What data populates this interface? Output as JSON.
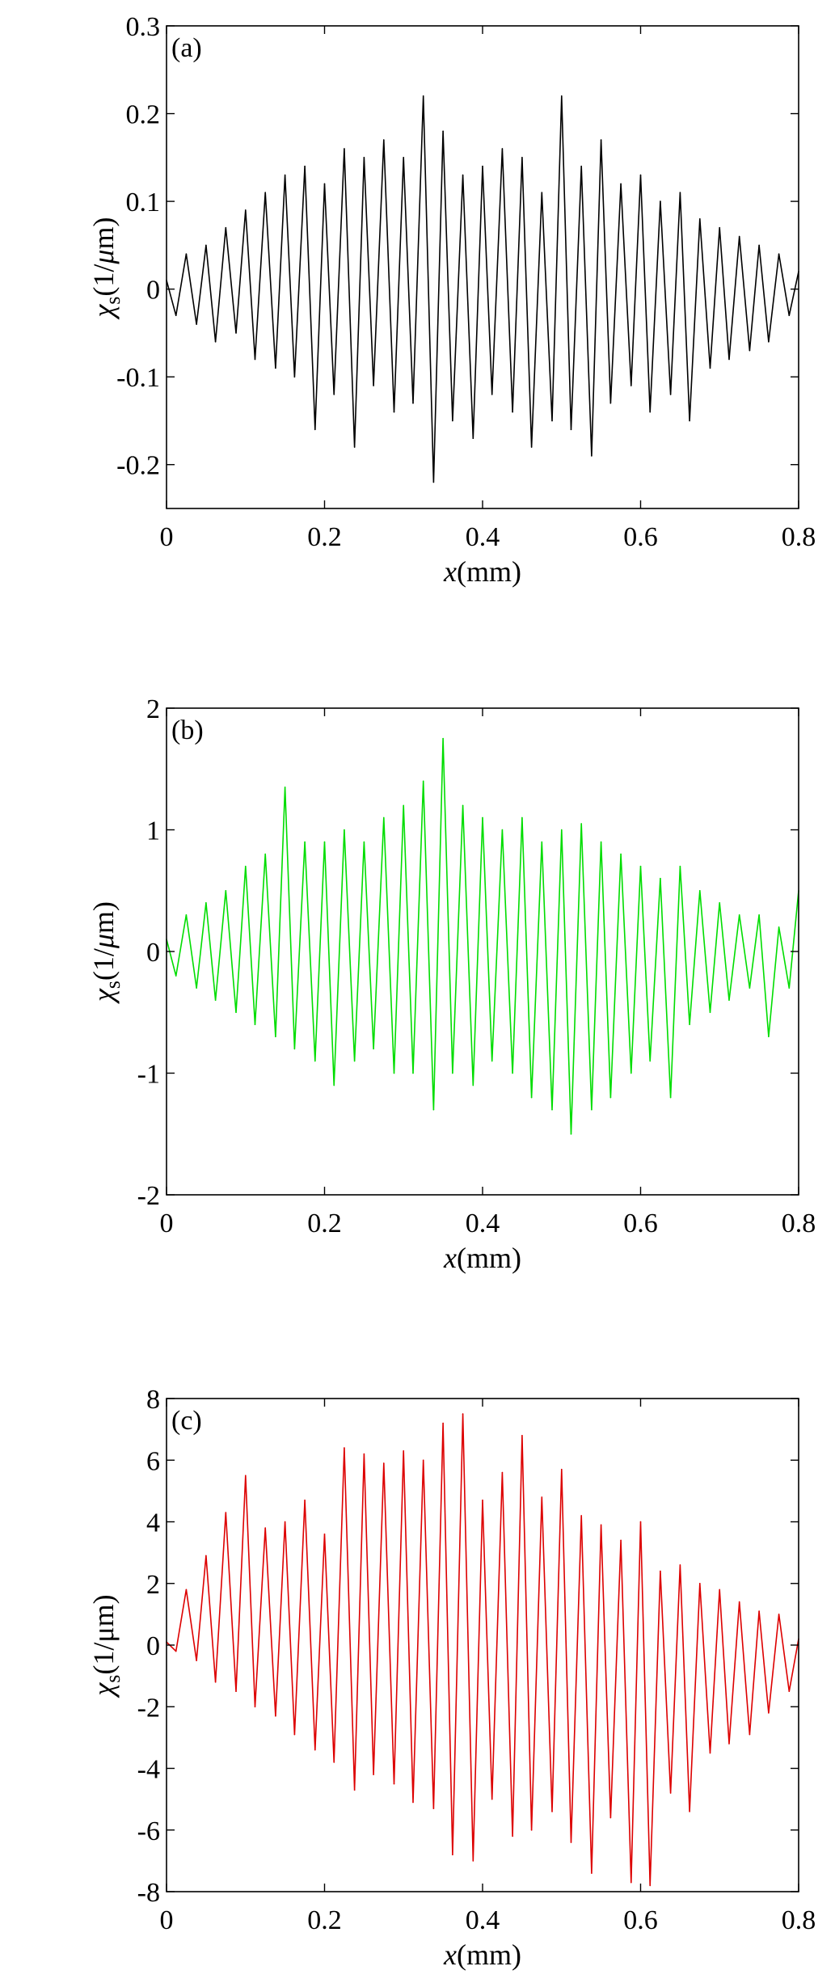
{
  "chart_data": [
    {
      "type": "line",
      "panel_label": "(a)",
      "xlabel_main": "x",
      "xlabel_unit": "(mm)",
      "ylabel_symbol": "χ",
      "ylabel_sub": "s",
      "ylabel_unit_pre": "(1/",
      "ylabel_unit_mu": "μ",
      "ylabel_unit_post": "m)",
      "xlim": [
        0,
        0.8
      ],
      "ylim": [
        -0.25,
        0.3
      ],
      "xticks": [
        0,
        0.2,
        0.4,
        0.6,
        0.8
      ],
      "xtick_labels": [
        "0",
        "0.2",
        "0.4",
        "0.6",
        "0.8"
      ],
      "yticks": [
        -0.2,
        -0.1,
        0,
        0.1,
        0.2,
        0.3
      ],
      "ytick_labels": [
        "-0.2",
        "-0.1",
        "0",
        "0.1",
        "0.2",
        "0.3"
      ],
      "grid": false,
      "series": [
        {
          "color": "#000000",
          "x": [
            0,
            0.012,
            0.025,
            0.038,
            0.05,
            0.062,
            0.075,
            0.088,
            0.1,
            0.112,
            0.125,
            0.138,
            0.15,
            0.162,
            0.175,
            0.188,
            0.2,
            0.212,
            0.225,
            0.238,
            0.25,
            0.262,
            0.275,
            0.288,
            0.3,
            0.312,
            0.325,
            0.338,
            0.35,
            0.362,
            0.375,
            0.388,
            0.4,
            0.412,
            0.425,
            0.438,
            0.45,
            0.462,
            0.475,
            0.488,
            0.5,
            0.512,
            0.525,
            0.538,
            0.55,
            0.562,
            0.575,
            0.588,
            0.6,
            0.612,
            0.625,
            0.638,
            0.65,
            0.662,
            0.675,
            0.688,
            0.7,
            0.712,
            0.725,
            0.738,
            0.75,
            0.762,
            0.775,
            0.788,
            0.8
          ],
          "y": [
            0.01,
            -0.03,
            0.04,
            -0.04,
            0.05,
            -0.06,
            0.07,
            -0.05,
            0.09,
            -0.08,
            0.11,
            -0.09,
            0.13,
            -0.1,
            0.14,
            -0.16,
            0.12,
            -0.12,
            0.16,
            -0.18,
            0.15,
            -0.11,
            0.17,
            -0.14,
            0.15,
            -0.13,
            0.22,
            -0.22,
            0.18,
            -0.15,
            0.13,
            -0.17,
            0.14,
            -0.12,
            0.16,
            -0.14,
            0.15,
            -0.18,
            0.11,
            -0.15,
            0.22,
            -0.16,
            0.14,
            -0.19,
            0.17,
            -0.13,
            0.12,
            -0.11,
            0.13,
            -0.14,
            0.1,
            -0.12,
            0.11,
            -0.15,
            0.08,
            -0.09,
            0.07,
            -0.08,
            0.06,
            -0.07,
            0.05,
            -0.06,
            0.04,
            -0.03,
            0.02
          ]
        }
      ]
    },
    {
      "type": "line",
      "panel_label": "(b)",
      "xlabel_main": "x",
      "xlabel_unit": "(mm)",
      "ylabel_symbol": "χ",
      "ylabel_sub": "s",
      "ylabel_unit_pre": "(1/",
      "ylabel_unit_mu": "μ",
      "ylabel_unit_post": "m)",
      "xlim": [
        0,
        0.8
      ],
      "ylim": [
        -2,
        2
      ],
      "xticks": [
        0,
        0.2,
        0.4,
        0.6,
        0.8
      ],
      "xtick_labels": [
        "0",
        "0.2",
        "0.4",
        "0.6",
        "0.8"
      ],
      "yticks": [
        -2,
        -1,
        0,
        1,
        2
      ],
      "ytick_labels": [
        "-2",
        "-1",
        "0",
        "1",
        "2"
      ],
      "grid": false,
      "series": [
        {
          "color": "#00dd00",
          "x": [
            0,
            0.012,
            0.025,
            0.038,
            0.05,
            0.062,
            0.075,
            0.088,
            0.1,
            0.112,
            0.125,
            0.138,
            0.15,
            0.162,
            0.175,
            0.188,
            0.2,
            0.212,
            0.225,
            0.238,
            0.25,
            0.262,
            0.275,
            0.288,
            0.3,
            0.312,
            0.325,
            0.338,
            0.35,
            0.362,
            0.375,
            0.388,
            0.4,
            0.412,
            0.425,
            0.438,
            0.45,
            0.462,
            0.475,
            0.488,
            0.5,
            0.512,
            0.525,
            0.538,
            0.55,
            0.562,
            0.575,
            0.588,
            0.6,
            0.612,
            0.625,
            0.638,
            0.65,
            0.662,
            0.675,
            0.688,
            0.7,
            0.712,
            0.725,
            0.738,
            0.75,
            0.762,
            0.775,
            0.788,
            0.8
          ],
          "y": [
            0.1,
            -0.2,
            0.3,
            -0.3,
            0.4,
            -0.4,
            0.5,
            -0.5,
            0.7,
            -0.6,
            0.8,
            -0.7,
            1.35,
            -0.8,
            0.9,
            -0.9,
            0.9,
            -1.1,
            1.0,
            -0.9,
            0.9,
            -0.8,
            1.1,
            -1.0,
            1.2,
            -1.0,
            1.4,
            -1.3,
            1.75,
            -1.0,
            1.2,
            -1.1,
            1.1,
            -0.9,
            1.0,
            -1.0,
            1.1,
            -1.2,
            0.9,
            -1.3,
            1.0,
            -1.5,
            1.05,
            -1.3,
            0.9,
            -1.2,
            0.8,
            -1.0,
            0.7,
            -0.9,
            0.6,
            -1.2,
            0.7,
            -0.6,
            0.5,
            -0.5,
            0.4,
            -0.4,
            0.3,
            -0.3,
            0.3,
            -0.7,
            0.2,
            -0.3,
            0.5
          ]
        }
      ]
    },
    {
      "type": "line",
      "panel_label": "(c)",
      "xlabel_main": "x",
      "xlabel_unit": "(mm)",
      "ylabel_symbol": "χ",
      "ylabel_sub": "s",
      "ylabel_unit_pre": "(1/",
      "ylabel_unit_mu": "",
      "ylabel_unit_post": "μm)",
      "xlim": [
        0,
        0.8
      ],
      "ylim": [
        -8,
        8
      ],
      "xticks": [
        0,
        0.2,
        0.4,
        0.6,
        0.8
      ],
      "xtick_labels": [
        "0",
        "0.2",
        "0.4",
        "0.6",
        "0.8"
      ],
      "yticks": [
        -8,
        -6,
        -4,
        -2,
        0,
        2,
        4,
        6,
        8
      ],
      "ytick_labels": [
        "-8",
        "-6",
        "-4",
        "-2",
        "0",
        "2",
        "4",
        "6",
        "8"
      ],
      "grid": false,
      "series": [
        {
          "color": "#dd0000",
          "x": [
            0,
            0.012,
            0.025,
            0.038,
            0.05,
            0.062,
            0.075,
            0.088,
            0.1,
            0.112,
            0.125,
            0.138,
            0.15,
            0.162,
            0.175,
            0.188,
            0.2,
            0.212,
            0.225,
            0.238,
            0.25,
            0.262,
            0.275,
            0.288,
            0.3,
            0.312,
            0.325,
            0.338,
            0.35,
            0.362,
            0.375,
            0.388,
            0.4,
            0.412,
            0.425,
            0.438,
            0.45,
            0.462,
            0.475,
            0.488,
            0.5,
            0.512,
            0.525,
            0.538,
            0.55,
            0.562,
            0.575,
            0.588,
            0.6,
            0.612,
            0.625,
            0.638,
            0.65,
            0.662,
            0.675,
            0.688,
            0.7,
            0.712,
            0.725,
            0.738,
            0.75,
            0.762,
            0.775,
            0.788,
            0.8
          ],
          "y": [
            0.1,
            -0.2,
            1.8,
            -0.5,
            2.9,
            -1.2,
            4.3,
            -1.5,
            5.5,
            -2.0,
            3.8,
            -2.3,
            4.0,
            -2.9,
            4.7,
            -3.4,
            3.6,
            -3.8,
            6.4,
            -4.7,
            6.2,
            -4.2,
            5.9,
            -4.5,
            6.3,
            -5.1,
            6.0,
            -5.3,
            7.2,
            -6.8,
            7.5,
            -7.0,
            4.7,
            -5.0,
            5.6,
            -6.2,
            6.8,
            -6.0,
            4.8,
            -5.4,
            5.7,
            -6.4,
            4.2,
            -7.4,
            3.9,
            -5.6,
            3.4,
            -7.7,
            4.0,
            -7.8,
            2.4,
            -4.8,
            2.6,
            -5.4,
            2.0,
            -3.5,
            1.8,
            -3.2,
            1.4,
            -2.9,
            1.1,
            -2.2,
            1.0,
            -1.5,
            0.2
          ]
        }
      ]
    }
  ]
}
